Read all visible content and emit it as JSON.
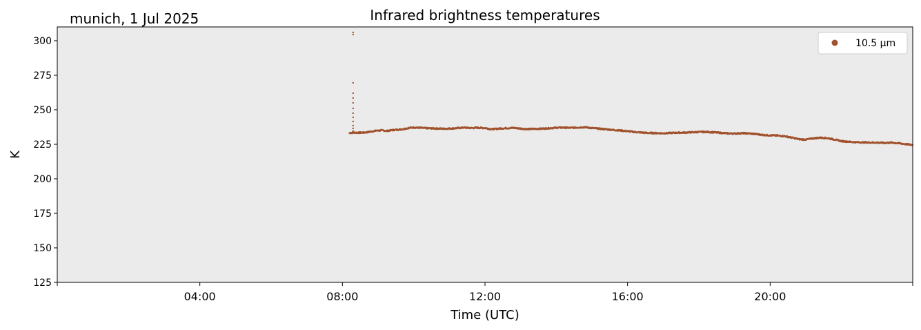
{
  "header": {
    "location_date": "munich, 1 Jul 2025"
  },
  "chart_data": {
    "type": "scatter",
    "title": "Infrared brightness temperatures",
    "xlabel": "Time (UTC)",
    "ylabel": "K",
    "x_unit": "hours UTC",
    "xlim": [
      0,
      24
    ],
    "ylim": [
      125,
      310
    ],
    "x_ticks": [
      {
        "value": 0,
        "label": ""
      },
      {
        "value": 4,
        "label": "04:00"
      },
      {
        "value": 8,
        "label": "08:00"
      },
      {
        "value": 12,
        "label": "12:00"
      },
      {
        "value": 16,
        "label": "16:00"
      },
      {
        "value": 20,
        "label": "20:00"
      },
      {
        "value": 24,
        "label": ""
      }
    ],
    "y_ticks": [
      125,
      150,
      175,
      200,
      225,
      250,
      275,
      300
    ],
    "grid": false,
    "legend_position": "top-right",
    "background_color": "#ebebeb",
    "series": [
      {
        "name": "10.5 µm",
        "color": "#a0522d",
        "points": [
          [
            8.2,
            233.2
          ],
          [
            8.35,
            233.5
          ],
          [
            8.5,
            233.4
          ],
          [
            8.65,
            233.6
          ],
          [
            8.8,
            234.2
          ],
          [
            8.95,
            234.9
          ],
          [
            9.1,
            235.1
          ],
          [
            9.25,
            234.7
          ],
          [
            9.4,
            235.3
          ],
          [
            9.55,
            235.6
          ],
          [
            9.7,
            236.0
          ],
          [
            9.85,
            236.8
          ],
          [
            10.0,
            237.2
          ],
          [
            10.2,
            236.9
          ],
          [
            10.4,
            236.6
          ],
          [
            10.6,
            236.5
          ],
          [
            10.8,
            236.3
          ],
          [
            11.0,
            236.4
          ],
          [
            11.2,
            236.7
          ],
          [
            11.4,
            237.1
          ],
          [
            11.6,
            236.8
          ],
          [
            11.8,
            237.0
          ],
          [
            12.0,
            236.8
          ],
          [
            12.2,
            235.9
          ],
          [
            12.4,
            236.4
          ],
          [
            12.6,
            236.7
          ],
          [
            12.8,
            236.9
          ],
          [
            13.0,
            236.4
          ],
          [
            13.2,
            236.0
          ],
          [
            13.4,
            236.2
          ],
          [
            13.6,
            236.3
          ],
          [
            13.8,
            236.7
          ],
          [
            14.0,
            237.0
          ],
          [
            14.2,
            237.1
          ],
          [
            14.4,
            236.9
          ],
          [
            14.6,
            237.2
          ],
          [
            14.8,
            237.4
          ],
          [
            15.0,
            236.8
          ],
          [
            15.2,
            236.3
          ],
          [
            15.4,
            235.9
          ],
          [
            15.6,
            235.4
          ],
          [
            15.8,
            235.0
          ],
          [
            16.0,
            234.5
          ],
          [
            16.2,
            233.9
          ],
          [
            16.4,
            233.5
          ],
          [
            16.6,
            233.2
          ],
          [
            16.8,
            233.1
          ],
          [
            17.0,
            233.0
          ],
          [
            17.2,
            233.2
          ],
          [
            17.4,
            233.4
          ],
          [
            17.6,
            233.5
          ],
          [
            17.8,
            233.7
          ],
          [
            18.0,
            233.9
          ],
          [
            18.2,
            234.0
          ],
          [
            18.4,
            233.7
          ],
          [
            18.6,
            233.3
          ],
          [
            18.8,
            232.9
          ],
          [
            19.0,
            232.8
          ],
          [
            19.2,
            233.0
          ],
          [
            19.4,
            232.9
          ],
          [
            19.6,
            232.4
          ],
          [
            19.8,
            231.8
          ],
          [
            20.0,
            231.5
          ],
          [
            20.2,
            231.3
          ],
          [
            20.4,
            230.9
          ],
          [
            20.6,
            229.9
          ],
          [
            20.8,
            228.7
          ],
          [
            21.0,
            228.4
          ],
          [
            21.2,
            229.3
          ],
          [
            21.4,
            229.8
          ],
          [
            21.6,
            229.5
          ],
          [
            21.8,
            228.5
          ],
          [
            22.0,
            227.3
          ],
          [
            22.2,
            226.9
          ],
          [
            22.4,
            226.5
          ],
          [
            22.6,
            226.4
          ],
          [
            22.8,
            226.3
          ],
          [
            23.0,
            226.2
          ],
          [
            23.2,
            226.0
          ],
          [
            23.4,
            226.2
          ],
          [
            23.6,
            225.8
          ],
          [
            23.8,
            225.1
          ],
          [
            24.0,
            224.5
          ]
        ],
        "spike": {
          "x": 8.3,
          "values": [
            304.5,
            306.0,
            269.5,
            262.0,
            258.5,
            255.0,
            251.0,
            247.5,
            244.5,
            241.5,
            238.5,
            236.5,
            234.5
          ]
        }
      }
    ]
  }
}
